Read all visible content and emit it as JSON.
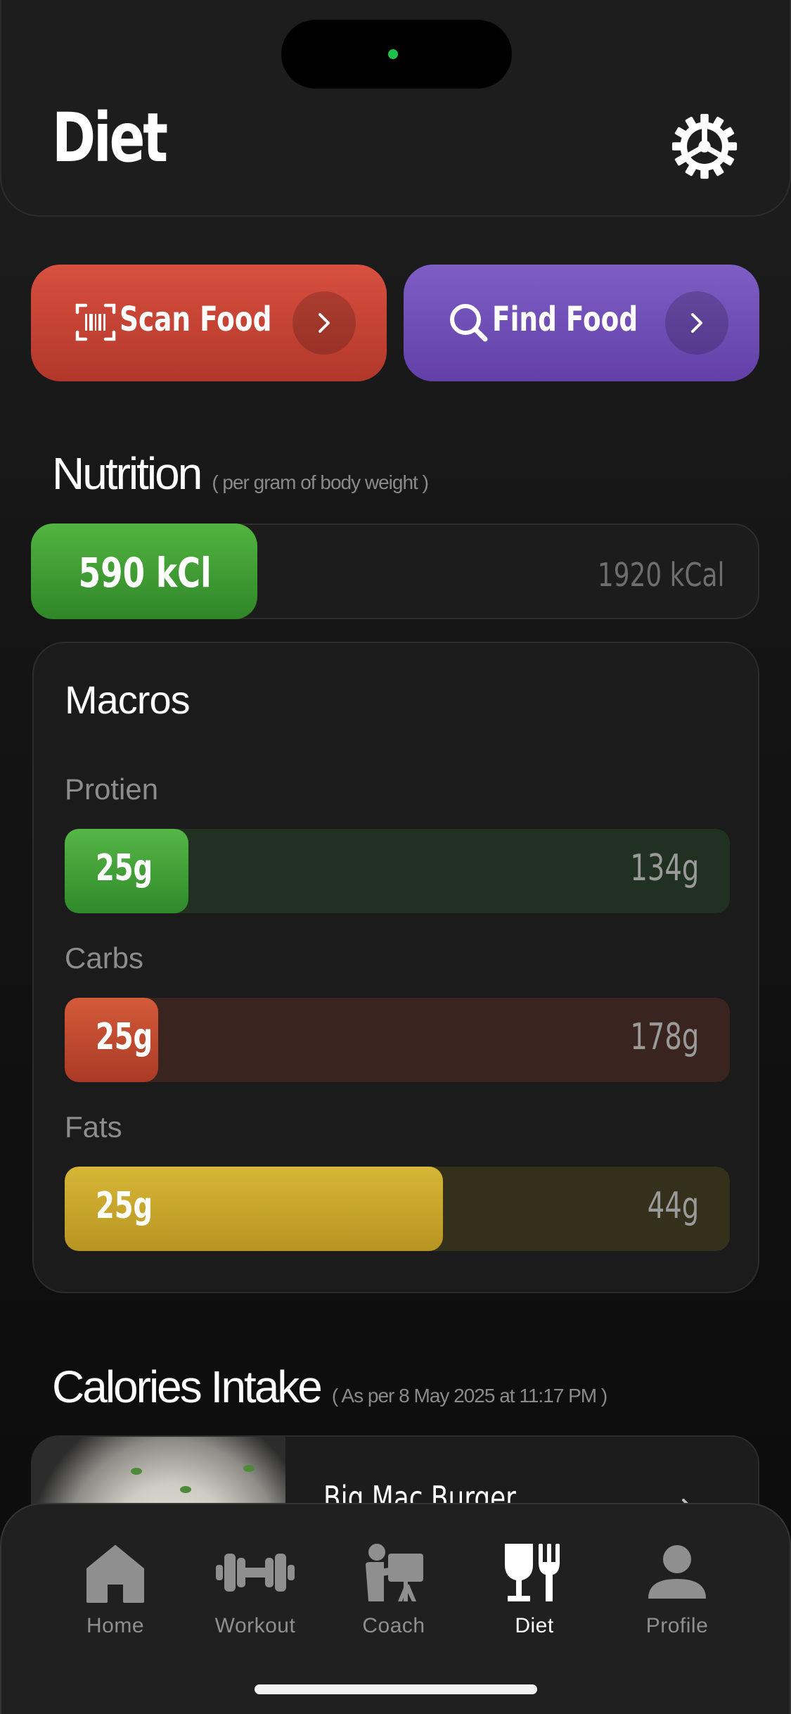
{
  "header": {
    "title": "Diet"
  },
  "actions": {
    "scan": {
      "label": "Scan Food",
      "color": "#c9453a"
    },
    "find": {
      "label": "Find Food",
      "color": "#7050b8"
    }
  },
  "nutrition": {
    "title": "Nutrition",
    "subtitle": "( per gram of body weight )",
    "consumed_label": "590 kCl",
    "target_label": "1920 kCal",
    "consumed_kcal": 590,
    "target_kcal": 1920
  },
  "macros": {
    "title": "Macros",
    "items": [
      {
        "label": "Protien",
        "value_label": "25g",
        "target_label": "134g",
        "value": 25,
        "target": 134,
        "color": "#4aa83c"
      },
      {
        "label": "Carbs",
        "value_label": "25g",
        "target_label": "178g",
        "value": 25,
        "target": 178,
        "color": "#c74a30"
      },
      {
        "label": "Fats",
        "value_label": "25g",
        "target_label": "44g",
        "value": 25,
        "target": 44,
        "color": "#c9a62c"
      }
    ]
  },
  "intake": {
    "title": "Calories Intake",
    "subtitle": "( As per 8 May 2025 at 11:17 PM )",
    "items": [
      {
        "name": "Big Mac Burger"
      }
    ]
  },
  "tabbar": {
    "items": [
      {
        "label": "Home",
        "icon": "home-icon",
        "active": false
      },
      {
        "label": "Workout",
        "icon": "dumbbell-icon",
        "active": false
      },
      {
        "label": "Coach",
        "icon": "coach-icon",
        "active": false
      },
      {
        "label": "Diet",
        "icon": "diet-icon",
        "active": true
      },
      {
        "label": "Profile",
        "icon": "profile-icon",
        "active": false
      }
    ]
  }
}
